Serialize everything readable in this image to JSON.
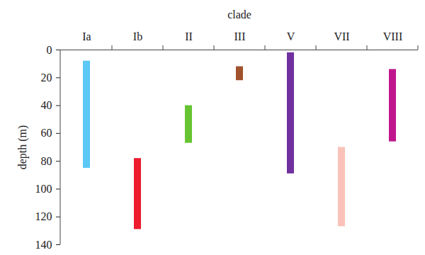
{
  "chart_data": {
    "type": "floating_bar",
    "x_label": "clade",
    "y_label": "depth (m)",
    "categories": [
      "Ia",
      "Ib",
      "II",
      "III",
      "V",
      "VII",
      "VIII"
    ],
    "values": [
      [
        8,
        85
      ],
      [
        78,
        129
      ],
      [
        40,
        67
      ],
      [
        12,
        22
      ],
      [
        2,
        89
      ],
      [
        70,
        127
      ],
      [
        14,
        66
      ]
    ],
    "colors": [
      "#5bc8f5",
      "#ed1c2e",
      "#66c431",
      "#a0522d",
      "#7030a0",
      "#f9c3b9",
      "#c0168c"
    ],
    "ylim": [
      0,
      140
    ],
    "yticks": [
      0,
      20,
      40,
      60,
      80,
      100,
      120,
      140
    ],
    "grid": false
  }
}
